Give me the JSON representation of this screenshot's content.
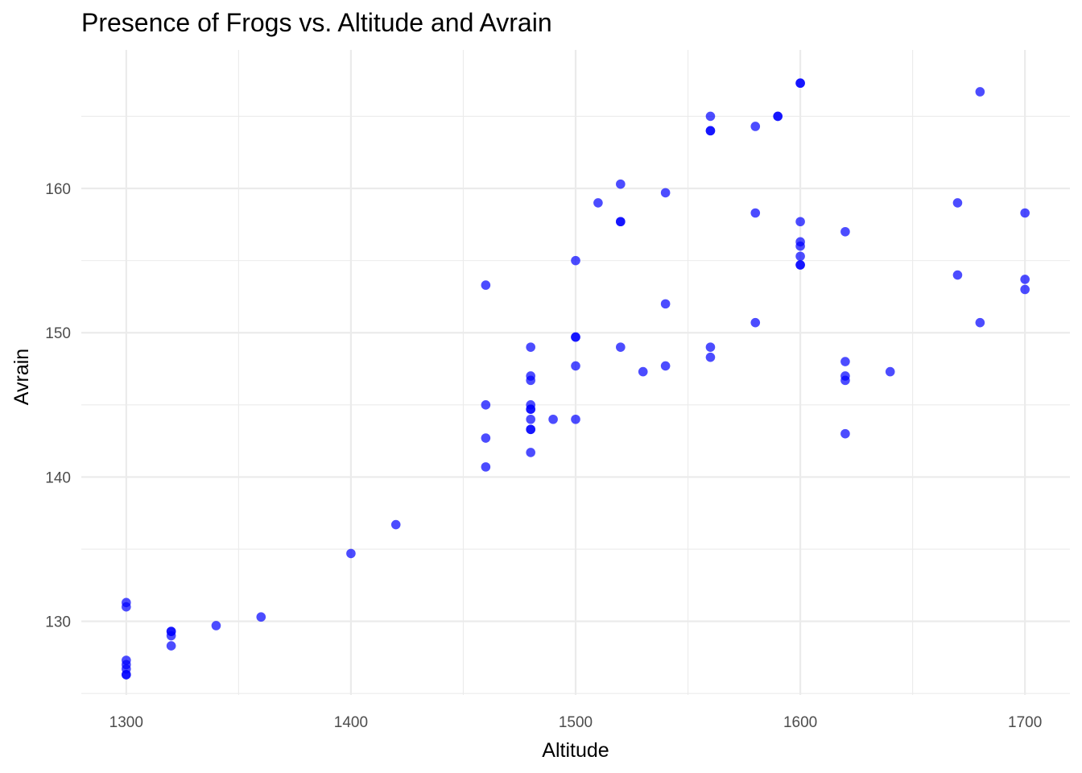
{
  "chart_data": {
    "type": "scatter",
    "title": "Presence of Frogs vs. Altitude and Avrain",
    "xlabel": "Altitude",
    "ylabel": "Avrain",
    "xlim": [
      1280,
      1720
    ],
    "ylim": [
      124.9,
      169.6
    ],
    "x_ticks": [
      1300,
      1400,
      1500,
      1600,
      1700
    ],
    "x_tick_labels": [
      "1300",
      "1400",
      "1500",
      "1600",
      "1700"
    ],
    "y_ticks": [
      130,
      140,
      150,
      160
    ],
    "y_tick_labels": [
      "130",
      "140",
      "150",
      "160"
    ],
    "grid": true,
    "legend": "none",
    "point_color": "#0000ff",
    "point_opacity": 0.7,
    "points": [
      {
        "x": 1300,
        "y": 131.3
      },
      {
        "x": 1300,
        "y": 131.0
      },
      {
        "x": 1300,
        "y": 127.3
      },
      {
        "x": 1300,
        "y": 127.0
      },
      {
        "x": 1300,
        "y": 126.7
      },
      {
        "x": 1300,
        "y": 126.3
      },
      {
        "x": 1300,
        "y": 126.3
      },
      {
        "x": 1320,
        "y": 129.3
      },
      {
        "x": 1320,
        "y": 129.3
      },
      {
        "x": 1320,
        "y": 129.0
      },
      {
        "x": 1320,
        "y": 128.3
      },
      {
        "x": 1340,
        "y": 129.7
      },
      {
        "x": 1360,
        "y": 130.3
      },
      {
        "x": 1400,
        "y": 134.7
      },
      {
        "x": 1420,
        "y": 136.7
      },
      {
        "x": 1460,
        "y": 153.3
      },
      {
        "x": 1460,
        "y": 145.0
      },
      {
        "x": 1460,
        "y": 142.7
      },
      {
        "x": 1460,
        "y": 140.7
      },
      {
        "x": 1480,
        "y": 149.0
      },
      {
        "x": 1480,
        "y": 147.0
      },
      {
        "x": 1480,
        "y": 146.7
      },
      {
        "x": 1480,
        "y": 145.0
      },
      {
        "x": 1480,
        "y": 144.7
      },
      {
        "x": 1480,
        "y": 144.7
      },
      {
        "x": 1480,
        "y": 144.0
      },
      {
        "x": 1480,
        "y": 143.3
      },
      {
        "x": 1480,
        "y": 143.3
      },
      {
        "x": 1480,
        "y": 141.7
      },
      {
        "x": 1490,
        "y": 144.0
      },
      {
        "x": 1500,
        "y": 155.0
      },
      {
        "x": 1500,
        "y": 149.7
      },
      {
        "x": 1500,
        "y": 149.7
      },
      {
        "x": 1500,
        "y": 147.7
      },
      {
        "x": 1500,
        "y": 144.0
      },
      {
        "x": 1510,
        "y": 159.0
      },
      {
        "x": 1520,
        "y": 160.3
      },
      {
        "x": 1520,
        "y": 157.7
      },
      {
        "x": 1520,
        "y": 157.7
      },
      {
        "x": 1520,
        "y": 149.0
      },
      {
        "x": 1530,
        "y": 147.3
      },
      {
        "x": 1540,
        "y": 159.7
      },
      {
        "x": 1540,
        "y": 152.0
      },
      {
        "x": 1540,
        "y": 147.7
      },
      {
        "x": 1560,
        "y": 165.0
      },
      {
        "x": 1560,
        "y": 164.0
      },
      {
        "x": 1560,
        "y": 164.0
      },
      {
        "x": 1560,
        "y": 149.0
      },
      {
        "x": 1560,
        "y": 148.3
      },
      {
        "x": 1580,
        "y": 164.3
      },
      {
        "x": 1580,
        "y": 158.3
      },
      {
        "x": 1580,
        "y": 150.7
      },
      {
        "x": 1590,
        "y": 165.0
      },
      {
        "x": 1590,
        "y": 165.0
      },
      {
        "x": 1600,
        "y": 167.3
      },
      {
        "x": 1600,
        "y": 167.3
      },
      {
        "x": 1600,
        "y": 157.7
      },
      {
        "x": 1600,
        "y": 156.3
      },
      {
        "x": 1600,
        "y": 156.0
      },
      {
        "x": 1600,
        "y": 155.3
      },
      {
        "x": 1600,
        "y": 154.7
      },
      {
        "x": 1600,
        "y": 154.7
      },
      {
        "x": 1620,
        "y": 157.0
      },
      {
        "x": 1620,
        "y": 148.0
      },
      {
        "x": 1620,
        "y": 147.0
      },
      {
        "x": 1620,
        "y": 146.7
      },
      {
        "x": 1620,
        "y": 143.0
      },
      {
        "x": 1640,
        "y": 147.3
      },
      {
        "x": 1670,
        "y": 159.0
      },
      {
        "x": 1670,
        "y": 154.0
      },
      {
        "x": 1680,
        "y": 166.7
      },
      {
        "x": 1680,
        "y": 150.7
      },
      {
        "x": 1700,
        "y": 158.3
      },
      {
        "x": 1700,
        "y": 153.7
      },
      {
        "x": 1700,
        "y": 153.0
      }
    ]
  }
}
